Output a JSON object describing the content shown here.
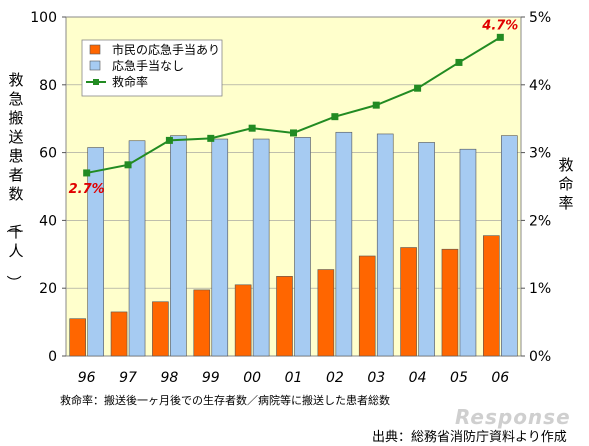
{
  "chart_data": {
    "type": "bar",
    "categories": [
      "96",
      "97",
      "98",
      "99",
      "00",
      "01",
      "02",
      "03",
      "04",
      "05",
      "06"
    ],
    "series": [
      {
        "name": "市民の応急手当あり",
        "type": "bar",
        "axis": "left",
        "color": "#ff6600",
        "values": [
          11,
          13,
          16,
          19.5,
          21,
          23.5,
          25.5,
          29.5,
          32,
          31.5,
          35.5
        ]
      },
      {
        "name": "応急手当なし",
        "type": "bar",
        "axis": "left",
        "color": "#a6cbf2",
        "values": [
          61.5,
          63.5,
          65,
          64,
          64,
          64.5,
          66,
          65.5,
          63,
          61,
          65
        ]
      },
      {
        "name": "救命率",
        "type": "line",
        "axis": "right",
        "color": "#228b22",
        "values": [
          2.7,
          2.82,
          3.18,
          3.21,
          3.36,
          3.29,
          3.53,
          3.7,
          3.95,
          4.33,
          4.7
        ]
      }
    ],
    "ylabel": "救急搬送患者数（千人）",
    "y2label": "救命率",
    "ylim": [
      0,
      100
    ],
    "y2lim": [
      0,
      5
    ],
    "yticks": [
      "0",
      "20",
      "40",
      "60",
      "80",
      "100"
    ],
    "y2ticks": [
      "0%",
      "1%",
      "2%",
      "3%",
      "4%",
      "5%"
    ],
    "legend_position": "top-left",
    "plot_background": "#ffffcc",
    "annotations": [
      {
        "text": "2.7%",
        "category": "96",
        "value": 2.7
      },
      {
        "text": "4.7%",
        "category": "06",
        "value": 4.7
      }
    ]
  },
  "footnote": "救命率：搬送後一ヶ月後での生存者数／病院等に搬送した患者総数",
  "source": "出典：総務省消防庁資料より作成",
  "watermark": "Response"
}
